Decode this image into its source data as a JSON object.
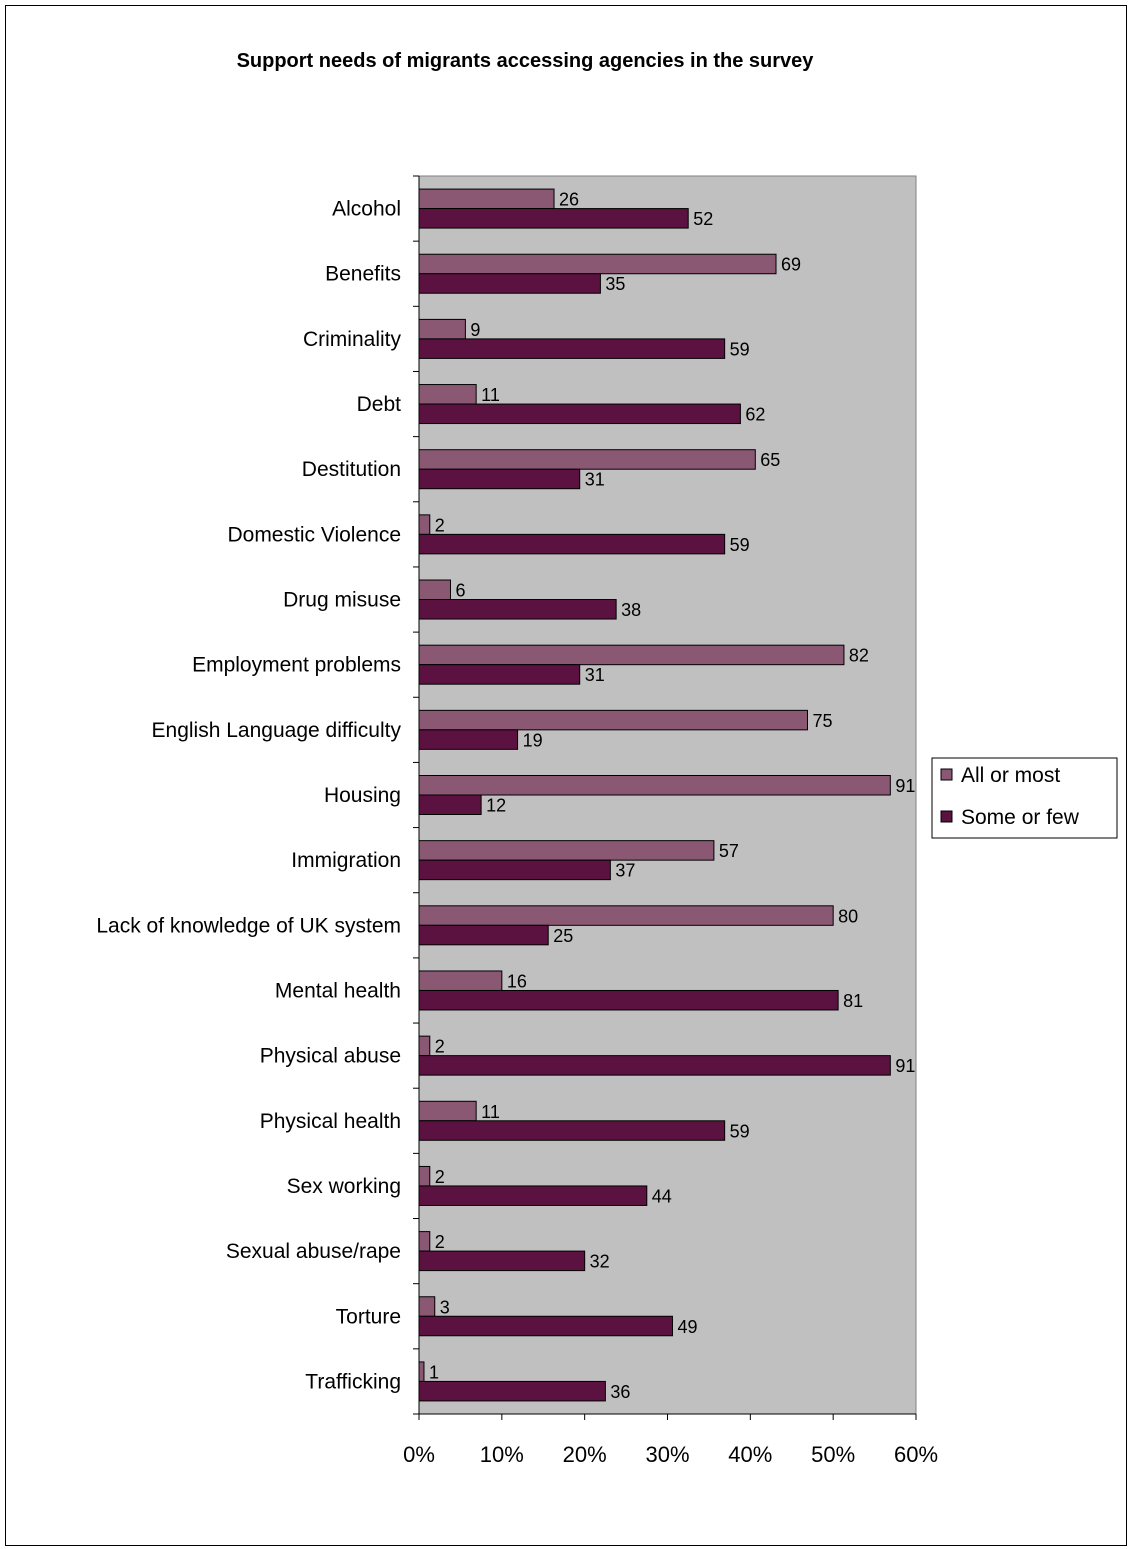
{
  "chart_data": {
    "type": "bar",
    "orientation": "horizontal",
    "title": "Support needs of migrants accessing agencies in the survey",
    "xlabel": "",
    "ylabel": "",
    "xlim": [
      0,
      60
    ],
    "x_ticks": [
      "0%",
      "10%",
      "20%",
      "30%",
      "40%",
      "50%",
      "60%"
    ],
    "grid": false,
    "plot_background": "#c0c0c0",
    "legend_position": "right",
    "categories": [
      "Alcohol",
      "Benefits",
      "Criminality",
      "Debt",
      "Destitution",
      "Domestic Violence",
      "Drug misuse",
      "Employment problems",
      "English Language difficulty",
      "Housing",
      "Immigration",
      "Lack of knowledge of UK system",
      "Mental health",
      "Physical abuse",
      "Physical health",
      "Sex working",
      "Sexual abuse/rape",
      "Torture",
      "Trafficking"
    ],
    "series": [
      {
        "name": "All or most",
        "color": "#8b5874",
        "percent_values": [
          16.3,
          43.1,
          5.6,
          6.9,
          40.6,
          1.3,
          3.8,
          51.3,
          46.9,
          56.9,
          35.6,
          50.0,
          10.0,
          1.3,
          6.9,
          1.3,
          1.3,
          1.9,
          0.6
        ],
        "labels": [
          "26",
          "69",
          "9",
          "11",
          "65",
          "2",
          "6",
          "82",
          "75",
          "91",
          "57",
          "80",
          "16",
          "2",
          "11",
          "2",
          "2",
          "3",
          "1"
        ]
      },
      {
        "name": "Some or few",
        "color": "#5c1240",
        "percent_values": [
          32.5,
          21.9,
          36.9,
          38.8,
          19.4,
          36.9,
          23.8,
          19.4,
          11.9,
          7.5,
          23.1,
          15.6,
          50.6,
          56.9,
          36.9,
          27.5,
          20.0,
          30.6,
          22.5
        ],
        "labels": [
          "52",
          "35",
          "59",
          "62",
          "31",
          "59",
          "38",
          "31",
          "19",
          "12",
          "37",
          "25",
          "81",
          "91",
          "59",
          "44",
          "32",
          "49",
          "36"
        ]
      }
    ]
  }
}
